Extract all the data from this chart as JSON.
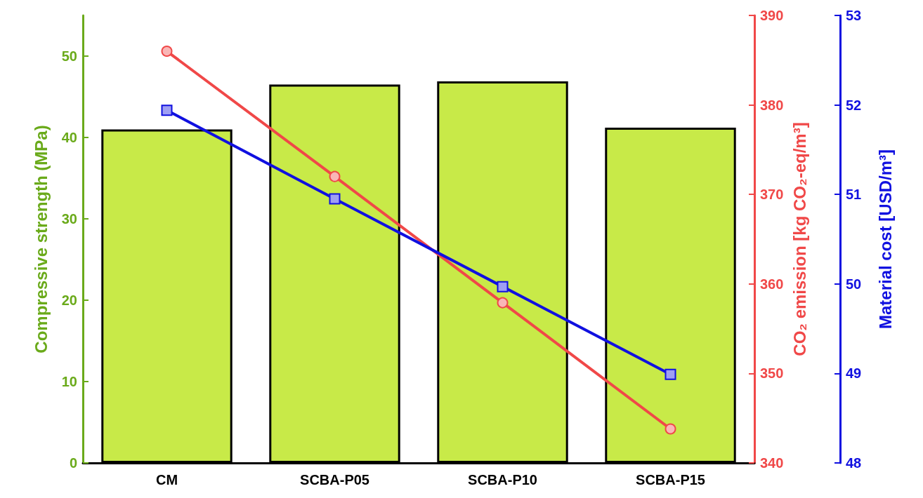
{
  "chart_data": {
    "type": "bar",
    "ylabel": "Compressive strength (MPa)",
    "y2label": "CO₂ emission [kg CO₂-eq/m³]",
    "y3label": "Material cost [USD/m³]",
    "categories": [
      "CM",
      "SCBA-P05",
      "SCBA-P10",
      "SCBA-P15"
    ],
    "series": [
      {
        "color": "#c8ea48",
        "values": [
          41,
          46.5,
          46.9,
          41.2
        ]
      },
      {
        "type": "line",
        "axis": "y2",
        "color": "#f04848",
        "marker": "circle",
        "values": [
          386,
          372,
          357.9,
          343.8
        ]
      },
      {
        "type": "line",
        "axis": "y3",
        "color": "#1010e0",
        "marker": "square",
        "values": [
          51.94,
          50.95,
          49.97,
          48.99
        ]
      }
    ],
    "ylim": [
      0,
      55
    ],
    "yticks": [
      0,
      10,
      20,
      30,
      40,
      50
    ],
    "y2lim": [
      340,
      390
    ],
    "y2ticks": [
      340,
      350,
      360,
      370,
      380,
      390
    ],
    "y3lim": [
      48,
      53
    ],
    "y3ticks": [
      48,
      49,
      50,
      51,
      52,
      53
    ],
    "grid": false
  }
}
